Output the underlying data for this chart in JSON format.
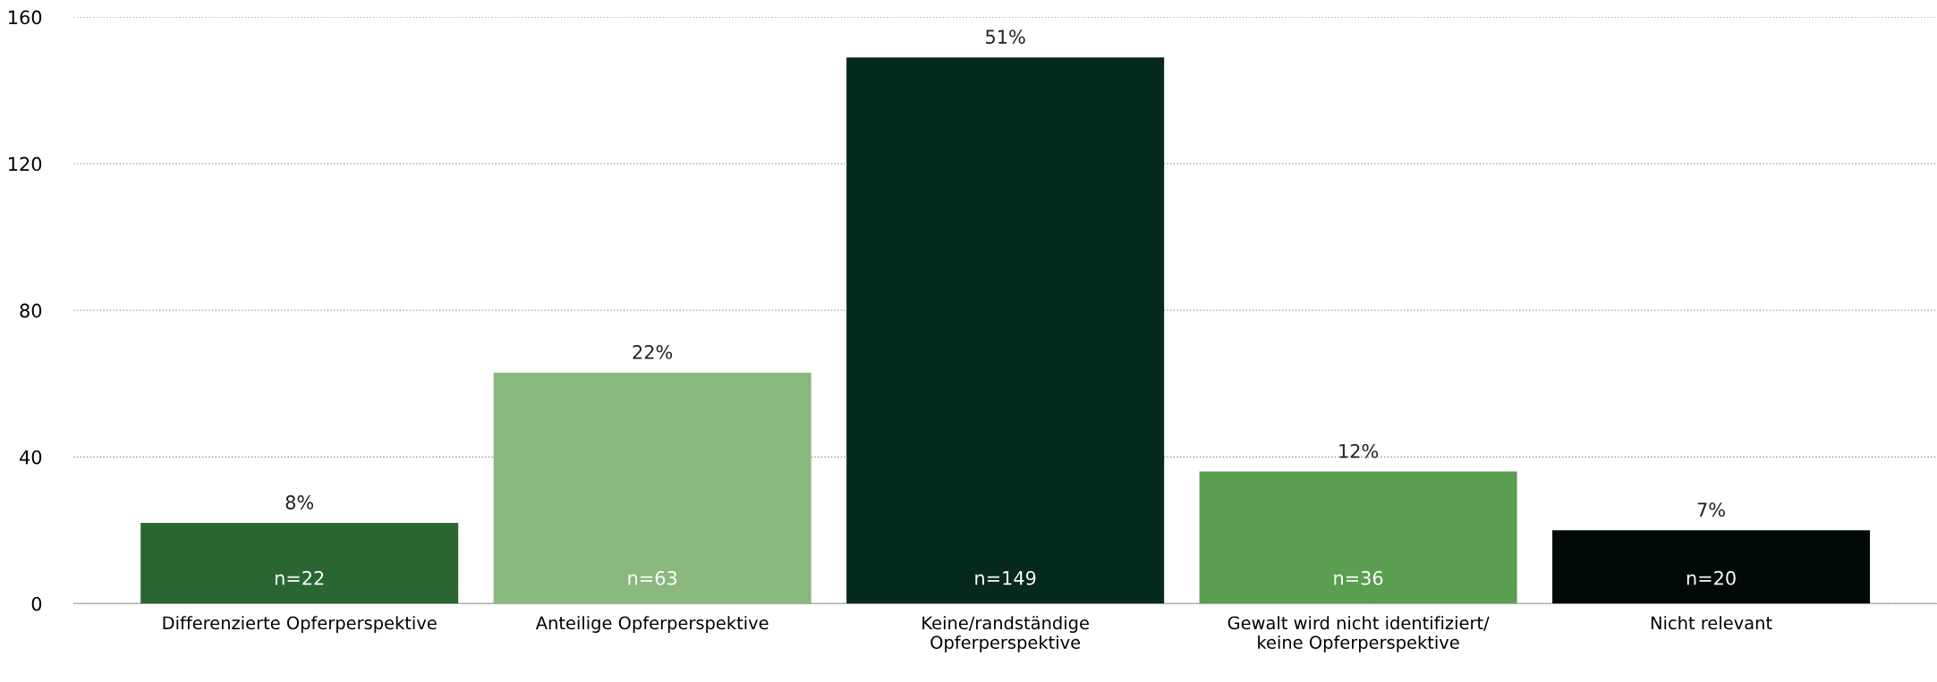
{
  "chart_data": {
    "type": "bar",
    "categories": [
      "Differenzierte Opferperspektive",
      "Anteilige Opferperspektive",
      "Keine/randständige\nOpferperspektive",
      "Gewalt wird nicht identifiziert/\nkeine Opferperspektive",
      "Nicht relevant"
    ],
    "values": [
      22,
      63,
      149,
      36,
      20
    ],
    "colors": [
      "#2a6632",
      "#8ab87f",
      "#05291a",
      "#5a9e50",
      "#020a06"
    ],
    "value_labels": [
      "n=22",
      "n=63",
      "n=149",
      "n=36",
      "n=20"
    ],
    "annotations": [
      {
        "text": "8%",
        "x": "Differenzierte Opferperspektive",
        "y": 22
      },
      {
        "text": "22%",
        "x": "Anteilige Opferperspektive",
        "y": 63
      },
      {
        "text": "51%",
        "x": "Keine/randständige\nOpferperspektive",
        "y": 149
      },
      {
        "text": "12%",
        "x": "Gewalt wird nicht identifiziert/\nkeine Opferperspektive",
        "y": 36
      },
      {
        "text": "7%",
        "x": "Nicht relevant",
        "y": 20
      }
    ],
    "ylim": [
      0,
      160
    ],
    "yticks": [
      0,
      40,
      80,
      120,
      160
    ],
    "grid": "y"
  }
}
